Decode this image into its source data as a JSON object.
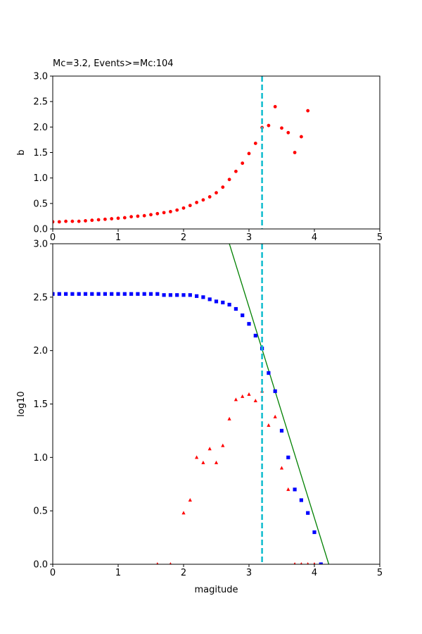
{
  "colors": {
    "bvalue_points": "#ff0000",
    "cumulative_points": "#0000ff",
    "noncumulative_points": "#ff0000",
    "fit_line": "#008000",
    "mc_line": "#17becf"
  },
  "chart_data": [
    {
      "type": "scatter",
      "title": "Mc=3.2, Events>=Mc:104",
      "xlabel": "",
      "ylabel": "b",
      "xlim": [
        0,
        5
      ],
      "ylim": [
        0,
        3
      ],
      "xticks": [
        "0",
        "1",
        "2",
        "3",
        "4",
        "5"
      ],
      "yticks": [
        "0.0",
        "0.5",
        "1.0",
        "1.5",
        "2.0",
        "2.5",
        "3.0"
      ],
      "grid": false,
      "legend": "none",
      "mc": 3.2,
      "series": [
        {
          "marker": "circle",
          "color_key": "bvalue_points",
          "x": [
            0.0,
            0.1,
            0.2,
            0.3,
            0.4,
            0.5,
            0.6,
            0.7,
            0.8,
            0.9,
            1.0,
            1.1,
            1.2,
            1.3,
            1.4,
            1.5,
            1.6,
            1.7,
            1.8,
            1.9,
            2.0,
            2.1,
            2.2,
            2.3,
            2.4,
            2.5,
            2.6,
            2.7,
            2.8,
            2.9,
            3.0,
            3.1,
            3.2,
            3.3,
            3.4,
            3.5,
            3.6,
            3.7,
            3.8,
            3.9
          ],
          "y": [
            0.14,
            0.14,
            0.15,
            0.15,
            0.15,
            0.16,
            0.17,
            0.18,
            0.19,
            0.2,
            0.21,
            0.22,
            0.24,
            0.25,
            0.26,
            0.28,
            0.3,
            0.32,
            0.34,
            0.37,
            0.41,
            0.46,
            0.52,
            0.57,
            0.63,
            0.71,
            0.82,
            0.97,
            1.13,
            1.29,
            1.48,
            1.68,
            1.99,
            2.03,
            2.4,
            1.98,
            1.89,
            1.5,
            1.81,
            2.32
          ]
        }
      ]
    },
    {
      "type": "scatter",
      "title": "",
      "xlabel": "magitude",
      "ylabel": "log10",
      "xlim": [
        0,
        5
      ],
      "ylim": [
        0,
        3
      ],
      "xticks": [
        "0",
        "1",
        "2",
        "3",
        "4",
        "5"
      ],
      "yticks": [
        "0.0",
        "0.5",
        "1.0",
        "1.5",
        "2.0",
        "2.5",
        "3.0"
      ],
      "grid": false,
      "legend": "none",
      "mc": 3.2,
      "series": [
        {
          "marker": "square",
          "color_key": "cumulative_points",
          "x": [
            0.0,
            0.1,
            0.2,
            0.3,
            0.4,
            0.5,
            0.6,
            0.7,
            0.8,
            0.9,
            1.0,
            1.1,
            1.2,
            1.3,
            1.4,
            1.5,
            1.6,
            1.7,
            1.8,
            1.9,
            2.0,
            2.1,
            2.2,
            2.3,
            2.4,
            2.5,
            2.6,
            2.7,
            2.8,
            2.9,
            3.0,
            3.1,
            3.2,
            3.3,
            3.4,
            3.5,
            3.6,
            3.7,
            3.8,
            3.9,
            4.0,
            4.1
          ],
          "y": [
            2.53,
            2.53,
            2.53,
            2.53,
            2.53,
            2.53,
            2.53,
            2.53,
            2.53,
            2.53,
            2.53,
            2.53,
            2.53,
            2.53,
            2.53,
            2.53,
            2.53,
            2.52,
            2.52,
            2.52,
            2.52,
            2.52,
            2.51,
            2.5,
            2.48,
            2.46,
            2.45,
            2.43,
            2.39,
            2.33,
            2.25,
            2.14,
            2.02,
            1.79,
            1.62,
            1.25,
            1.0,
            0.7,
            0.6,
            0.48,
            0.3,
            0.0
          ]
        },
        {
          "marker": "triangle",
          "color_key": "noncumulative_points",
          "x": [
            1.6,
            1.8,
            2.0,
            2.1,
            2.2,
            2.3,
            2.4,
            2.5,
            2.6,
            2.7,
            2.8,
            2.9,
            3.0,
            3.1,
            3.2,
            3.3,
            3.4,
            3.5,
            3.6,
            3.7,
            3.8,
            3.9,
            4.0
          ],
          "y": [
            0.0,
            0.0,
            0.48,
            0.6,
            1.0,
            0.95,
            1.08,
            0.95,
            1.11,
            1.36,
            1.54,
            1.57,
            1.59,
            1.53,
            1.62,
            1.3,
            1.38,
            0.9,
            0.7,
            0.0,
            0.0,
            0.0,
            0.0
          ]
        }
      ],
      "fit_line": {
        "x": [
          2.7,
          4.22
        ],
        "y": [
          3.0,
          0.0
        ]
      }
    }
  ]
}
